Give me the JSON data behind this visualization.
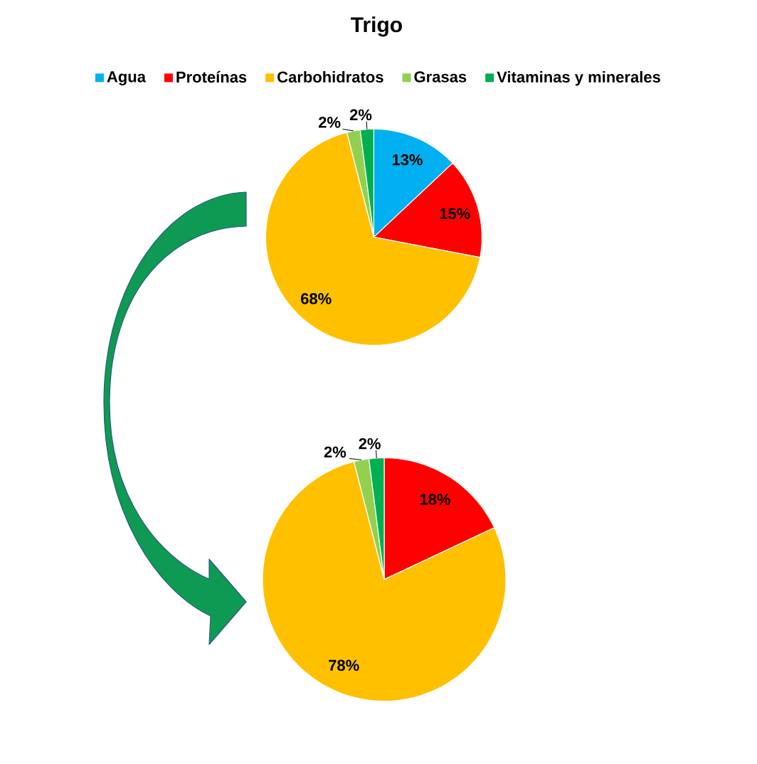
{
  "chart_data": [
    {
      "type": "pie",
      "title": "Trigo",
      "categories": [
        "Agua",
        "Proteínas",
        "Carbohidratos",
        "Grasas",
        "Vitaminas y minerales"
      ],
      "values": [
        13,
        15,
        68,
        2,
        2
      ],
      "colors": [
        "#00b0f0",
        "#ff0000",
        "#ffc000",
        "#92d050",
        "#00b050"
      ],
      "value_labels": [
        "13%",
        "15%",
        "68%",
        "2%",
        "2%"
      ],
      "legend": "top"
    },
    {
      "type": "pie",
      "categories": [
        null,
        null,
        null,
        null
      ],
      "values": [
        18,
        78,
        2,
        2
      ],
      "colors": [
        "#ff0000",
        "#ffc000",
        "#92d050",
        "#00b050"
      ],
      "value_labels": [
        "18%",
        "78%",
        "2%",
        "2%"
      ]
    }
  ]
}
